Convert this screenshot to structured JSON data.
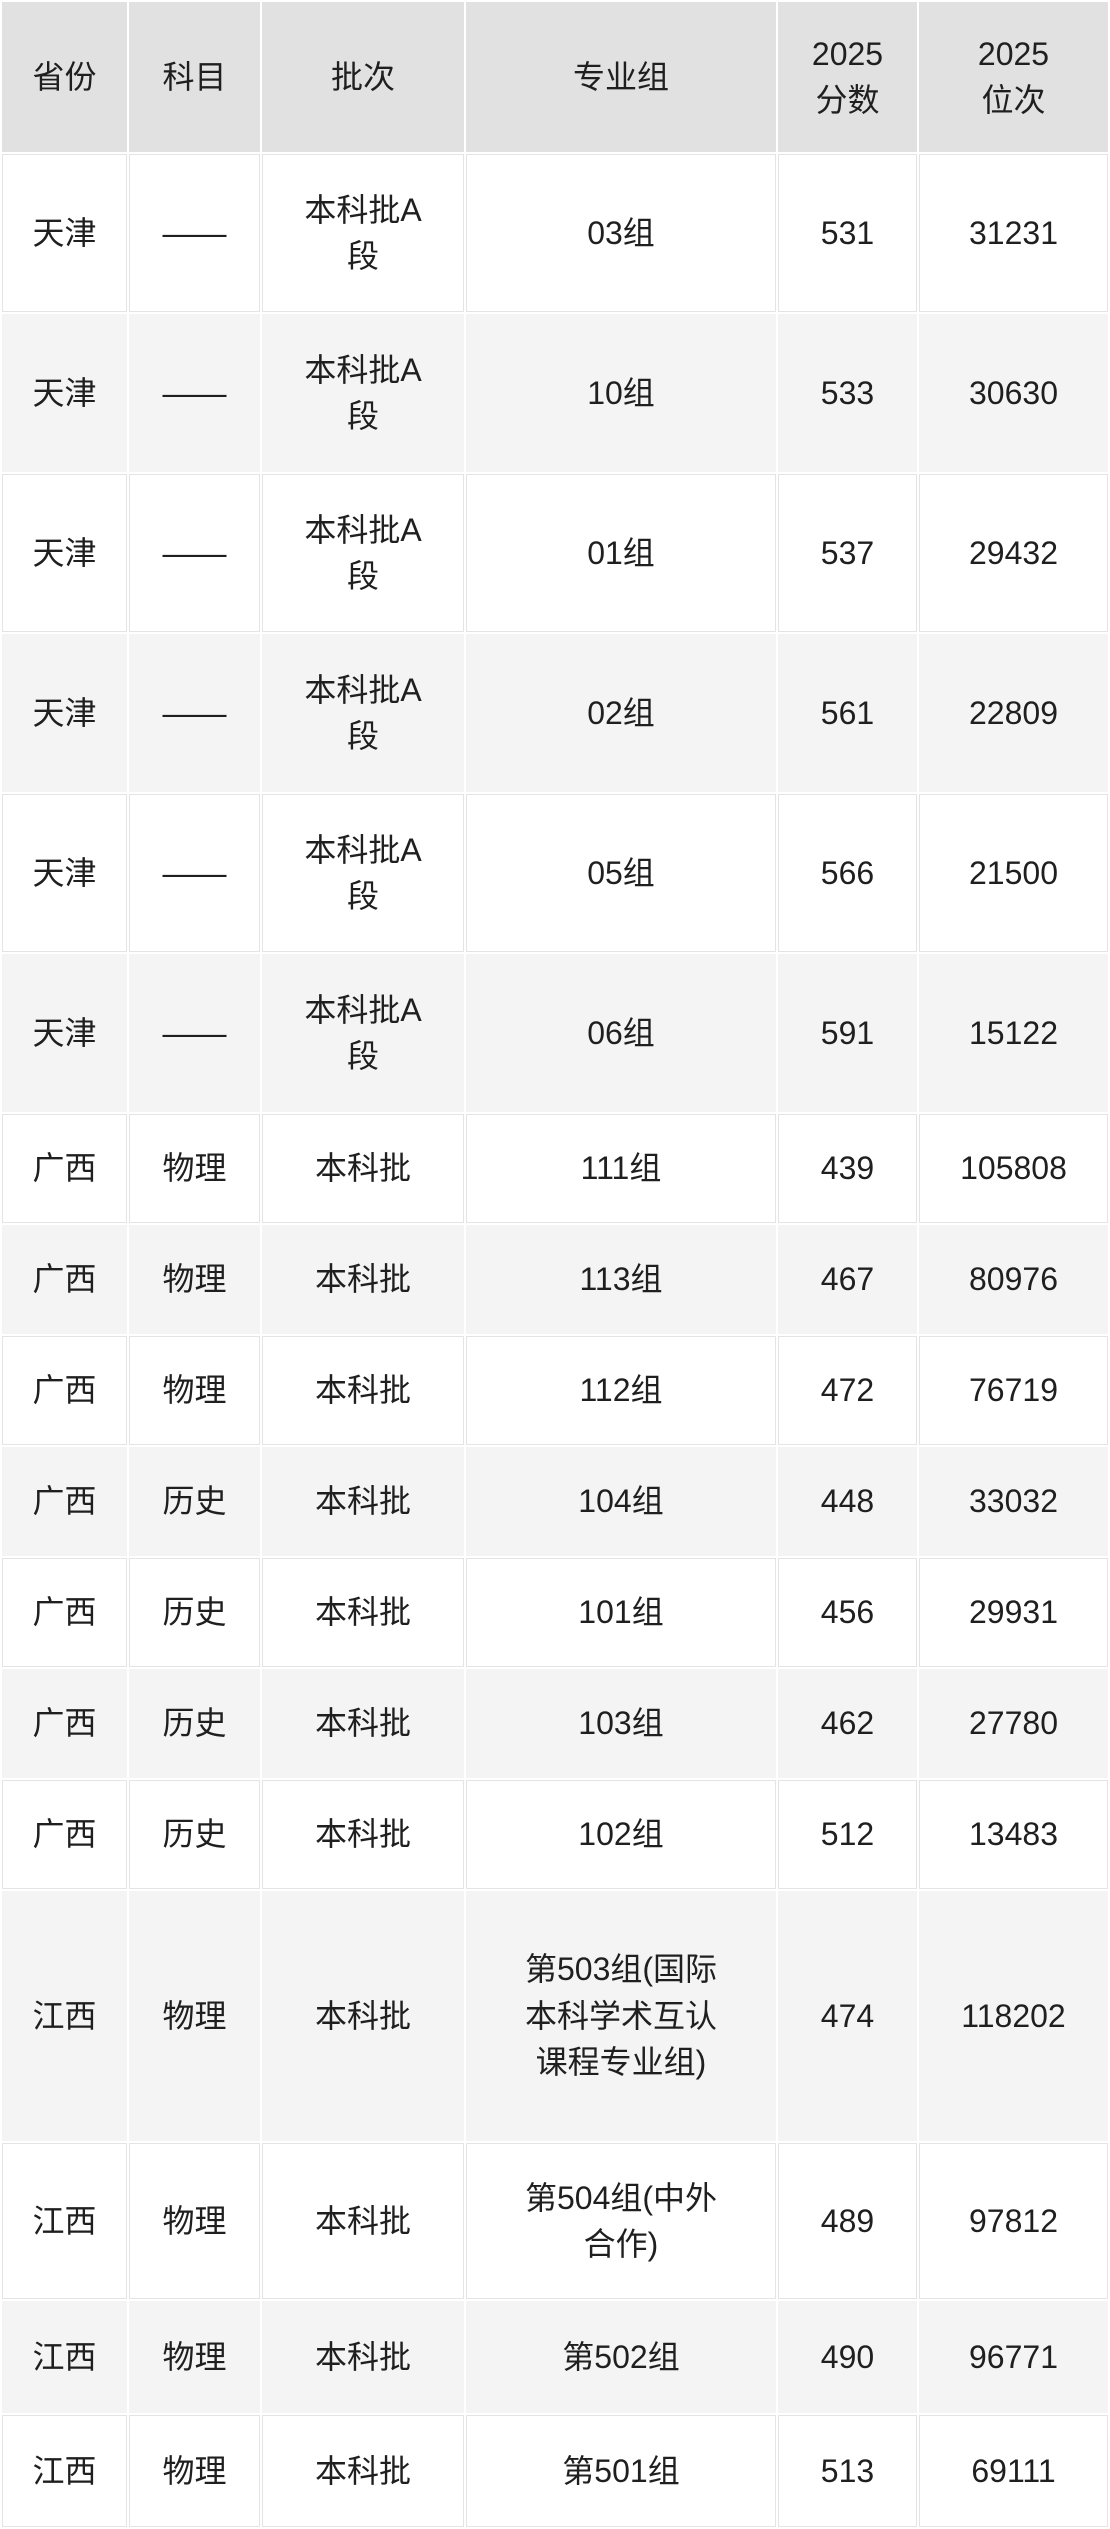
{
  "colors": {
    "page_background": "#ffffff",
    "header_background": "#e1e1e1",
    "row_stripe_background": "#f4f4f5",
    "row_white_background": "#ffffff",
    "grid_line": "#e4e4e4",
    "text": "#1f1f1f"
  },
  "table": {
    "columns": [
      {
        "key": "province",
        "label": "省份"
      },
      {
        "key": "subject",
        "label": "科目"
      },
      {
        "key": "batch",
        "label": "批次"
      },
      {
        "key": "group",
        "label": "专业组"
      },
      {
        "key": "score",
        "label": "2025\n分数"
      },
      {
        "key": "rank",
        "label": "2025\n位次"
      }
    ],
    "rows": [
      {
        "province": "天津",
        "subject": "——",
        "batch": "本科批A段",
        "group": "03组",
        "score": "531",
        "rank": "31231"
      },
      {
        "province": "天津",
        "subject": "——",
        "batch": "本科批A段",
        "group": "10组",
        "score": "533",
        "rank": "30630"
      },
      {
        "province": "天津",
        "subject": "——",
        "batch": "本科批A段",
        "group": "01组",
        "score": "537",
        "rank": "29432"
      },
      {
        "province": "天津",
        "subject": "——",
        "batch": "本科批A段",
        "group": "02组",
        "score": "561",
        "rank": "22809"
      },
      {
        "province": "天津",
        "subject": "——",
        "batch": "本科批A段",
        "group": "05组",
        "score": "566",
        "rank": "21500"
      },
      {
        "province": "天津",
        "subject": "——",
        "batch": "本科批A段",
        "group": "06组",
        "score": "591",
        "rank": "15122"
      },
      {
        "province": "广西",
        "subject": "物理",
        "batch": "本科批",
        "group": "111组",
        "score": "439",
        "rank": "105808"
      },
      {
        "province": "广西",
        "subject": "物理",
        "batch": "本科批",
        "group": "113组",
        "score": "467",
        "rank": "80976"
      },
      {
        "province": "广西",
        "subject": "物理",
        "batch": "本科批",
        "group": "112组",
        "score": "472",
        "rank": "76719"
      },
      {
        "province": "广西",
        "subject": "历史",
        "batch": "本科批",
        "group": "104组",
        "score": "448",
        "rank": "33032"
      },
      {
        "province": "广西",
        "subject": "历史",
        "batch": "本科批",
        "group": "101组",
        "score": "456",
        "rank": "29931"
      },
      {
        "province": "广西",
        "subject": "历史",
        "batch": "本科批",
        "group": "103组",
        "score": "462",
        "rank": "27780"
      },
      {
        "province": "广西",
        "subject": "历史",
        "batch": "本科批",
        "group": "102组",
        "score": "512",
        "rank": "13483"
      },
      {
        "province": "江西",
        "subject": "物理",
        "batch": "本科批",
        "group": "第503组(国际本科学术互认课程专业组)",
        "score": "474",
        "rank": "118202"
      },
      {
        "province": "江西",
        "subject": "物理",
        "batch": "本科批",
        "group": "第504组(中外合作)",
        "score": "489",
        "rank": "97812"
      },
      {
        "province": "江西",
        "subject": "物理",
        "batch": "本科批",
        "group": "第502组",
        "score": "490",
        "rank": "96771"
      },
      {
        "province": "江西",
        "subject": "物理",
        "batch": "本科批",
        "group": "第501组",
        "score": "513",
        "rank": "69111"
      }
    ]
  },
  "chart_data": {
    "type": "table",
    "title": "",
    "columns": [
      "省份",
      "科目",
      "批次",
      "专业组",
      "2025分数",
      "2025位次"
    ],
    "rows": [
      [
        "天津",
        "——",
        "本科批A段",
        "03组",
        531,
        31231
      ],
      [
        "天津",
        "——",
        "本科批A段",
        "10组",
        533,
        30630
      ],
      [
        "天津",
        "——",
        "本科批A段",
        "01组",
        537,
        29432
      ],
      [
        "天津",
        "——",
        "本科批A段",
        "02组",
        561,
        22809
      ],
      [
        "天津",
        "——",
        "本科批A段",
        "05组",
        566,
        21500
      ],
      [
        "天津",
        "——",
        "本科批A段",
        "06组",
        591,
        15122
      ],
      [
        "广西",
        "物理",
        "本科批",
        "111组",
        439,
        105808
      ],
      [
        "广西",
        "物理",
        "本科批",
        "113组",
        467,
        80976
      ],
      [
        "广西",
        "物理",
        "本科批",
        "112组",
        472,
        76719
      ],
      [
        "广西",
        "历史",
        "本科批",
        "104组",
        448,
        33032
      ],
      [
        "广西",
        "历史",
        "本科批",
        "101组",
        456,
        29931
      ],
      [
        "广西",
        "历史",
        "本科批",
        "103组",
        462,
        27780
      ],
      [
        "广西",
        "历史",
        "本科批",
        "102组",
        512,
        13483
      ],
      [
        "江西",
        "物理",
        "本科批",
        "第503组(国际本科学术互认课程专业组)",
        474,
        118202
      ],
      [
        "江西",
        "物理",
        "本科批",
        "第504组(中外合作)",
        489,
        97812
      ],
      [
        "江西",
        "物理",
        "本科批",
        "第502组",
        490,
        96771
      ],
      [
        "江西",
        "物理",
        "本科批",
        "第501组",
        513,
        69111
      ]
    ],
    "layout_hints": {
      "striped_rows": true,
      "header_shaded": true,
      "grid": true
    }
  }
}
